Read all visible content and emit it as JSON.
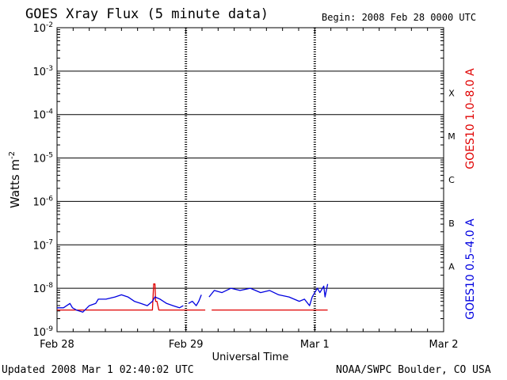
{
  "header": {
    "title": "GOES Xray Flux (5 minute data)",
    "begin": "Begin:  2008 Feb 28 0000 UTC"
  },
  "footer": {
    "updated": "Updated 2008 Mar  1 02:40:02 UTC",
    "credit": "NOAA/SWPC Boulder, CO USA"
  },
  "chart_data": {
    "type": "line",
    "title": "GOES Xray Flux (5 minute data)",
    "xlabel": "Universal Time",
    "ylabel": "Watts m",
    "ylabel_sup": "-2",
    "y_scale": "log",
    "ylim_exp": [
      -9,
      -2
    ],
    "y_ticks": [
      {
        "base": "10",
        "exp": "-2"
      },
      {
        "base": "10",
        "exp": "-3"
      },
      {
        "base": "10",
        "exp": "-4"
      },
      {
        "base": "10",
        "exp": "-5"
      },
      {
        "base": "10",
        "exp": "-6"
      },
      {
        "base": "10",
        "exp": "-7"
      },
      {
        "base": "10",
        "exp": "-8"
      },
      {
        "base": "10",
        "exp": "-9"
      }
    ],
    "x_ticks": [
      "Feb 28",
      "Feb 29",
      "Mar 1",
      "Mar 2"
    ],
    "xlim_days": [
      0,
      3
    ],
    "flare_classes": [
      {
        "label": "X",
        "exp": -3.5
      },
      {
        "label": "M",
        "exp": -4.5
      },
      {
        "label": "C",
        "exp": -5.5
      },
      {
        "label": "B",
        "exp": -6.5
      },
      {
        "label": "A",
        "exp": -7.5
      }
    ],
    "grid": true,
    "series": [
      {
        "name": "GOES10 1.0–8.0 A",
        "color": "#e00000",
        "segments": [
          [
            [
              0.0,
              -8.5
            ],
            [
              0.15,
              -8.5
            ],
            [
              0.3,
              -8.5
            ],
            [
              0.55,
              -8.5
            ],
            [
              0.7,
              -8.5
            ],
            [
              0.74,
              -8.5
            ],
            [
              0.75,
              -7.9
            ],
            [
              0.76,
              -7.9
            ],
            [
              0.765,
              -8.3
            ],
            [
              0.775,
              -8.3
            ],
            [
              0.79,
              -8.5
            ],
            [
              0.8,
              -8.5
            ],
            [
              0.85,
              -8.5
            ],
            [
              0.95,
              -8.5
            ],
            [
              1.05,
              -8.5
            ],
            [
              1.15,
              -8.5
            ]
          ],
          [
            [
              1.2,
              -8.5
            ],
            [
              1.5,
              -8.5
            ],
            [
              1.8,
              -8.5
            ],
            [
              2.1,
              -8.5
            ]
          ]
        ]
      },
      {
        "name": "GOES10 0.5–4.0 A",
        "color": "#0000e0",
        "segments": [
          [
            [
              0.0,
              -8.45
            ],
            [
              0.05,
              -8.45
            ],
            [
              0.1,
              -8.35
            ],
            [
              0.12,
              -8.45
            ],
            [
              0.15,
              -8.5
            ],
            [
              0.2,
              -8.55
            ],
            [
              0.25,
              -8.4
            ],
            [
              0.3,
              -8.35
            ],
            [
              0.32,
              -8.25
            ],
            [
              0.38,
              -8.25
            ],
            [
              0.45,
              -8.2
            ],
            [
              0.5,
              -8.15
            ],
            [
              0.55,
              -8.2
            ],
            [
              0.6,
              -8.3
            ],
            [
              0.65,
              -8.35
            ],
            [
              0.7,
              -8.4
            ],
            [
              0.74,
              -8.3
            ],
            [
              0.76,
              -8.2
            ],
            [
              0.8,
              -8.25
            ],
            [
              0.85,
              -8.35
            ],
            [
              0.9,
              -8.4
            ],
            [
              0.95,
              -8.45
            ],
            [
              0.98,
              -8.4
            ]
          ],
          [
            [
              1.02,
              -8.35
            ],
            [
              1.05,
              -8.3
            ],
            [
              1.08,
              -8.4
            ],
            [
              1.1,
              -8.3
            ],
            [
              1.12,
              -8.15
            ]
          ],
          [
            [
              1.18,
              -8.2
            ],
            [
              1.22,
              -8.05
            ],
            [
              1.28,
              -8.1
            ],
            [
              1.35,
              -8.0
            ],
            [
              1.42,
              -8.05
            ],
            [
              1.5,
              -8.0
            ],
            [
              1.58,
              -8.1
            ],
            [
              1.65,
              -8.05
            ],
            [
              1.72,
              -8.15
            ],
            [
              1.8,
              -8.2
            ],
            [
              1.88,
              -8.3
            ],
            [
              1.92,
              -8.25
            ],
            [
              1.96,
              -8.4
            ],
            [
              1.98,
              -8.2
            ],
            [
              2.02,
              -8.0
            ],
            [
              2.04,
              -8.1
            ],
            [
              2.07,
              -7.95
            ],
            [
              2.08,
              -8.2
            ],
            [
              2.1,
              -7.9
            ]
          ]
        ]
      }
    ]
  }
}
